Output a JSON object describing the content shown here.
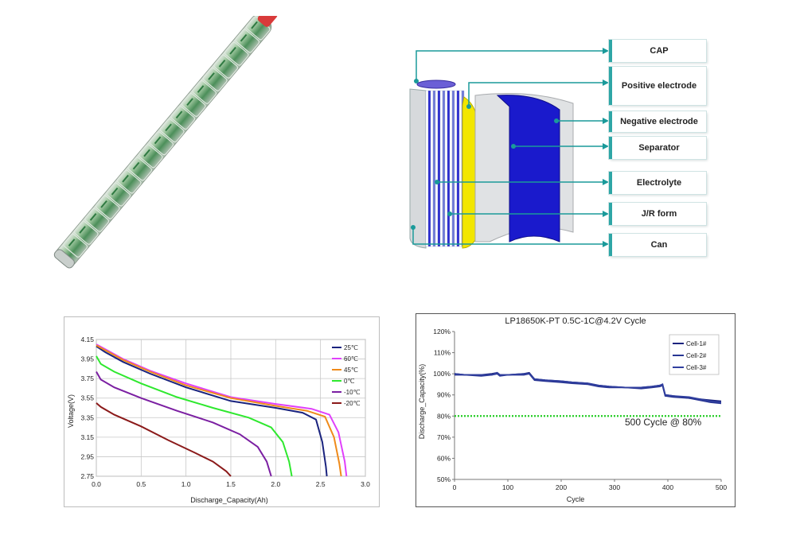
{
  "diagram": {
    "labels": [
      "CAP",
      "Positive electrode",
      "Negative electrode",
      "Separator",
      "Electrolyte",
      "J/R form",
      "Can"
    ]
  },
  "chart_data": [
    {
      "type": "line",
      "title": "",
      "xlabel": "Discharge_Capacity(Ah)",
      "ylabel": "Voltage(V)",
      "xlim": [
        0.0,
        3.0
      ],
      "ylim": [
        2.75,
        4.15
      ],
      "xticks": [
        "0.0",
        "0.5",
        "1.0",
        "1.5",
        "2.0",
        "2.5",
        "3.0"
      ],
      "yticks": [
        "2.75",
        "2.95",
        "3.15",
        "3.35",
        "3.55",
        "3.75",
        "3.95",
        "4.15"
      ],
      "grid": true,
      "legend_position": "top-right",
      "series": [
        {
          "name": "25℃",
          "color": "#1a237e",
          "x": [
            0,
            0.1,
            0.3,
            0.6,
            1.0,
            1.5,
            2.0,
            2.3,
            2.45,
            2.52,
            2.56,
            2.57
          ],
          "y": [
            4.08,
            4.02,
            3.92,
            3.8,
            3.66,
            3.52,
            3.45,
            3.4,
            3.33,
            3.1,
            2.85,
            2.75
          ]
        },
        {
          "name": "60℃",
          "color": "#e040fb",
          "x": [
            0,
            0.1,
            0.3,
            0.6,
            1.0,
            1.5,
            2.0,
            2.4,
            2.6,
            2.7,
            2.77,
            2.79
          ],
          "y": [
            4.1,
            4.05,
            3.95,
            3.83,
            3.7,
            3.56,
            3.49,
            3.44,
            3.38,
            3.2,
            2.9,
            2.75
          ]
        },
        {
          "name": "45℃",
          "color": "#ef8a1a",
          "x": [
            0,
            0.1,
            0.3,
            0.6,
            1.0,
            1.5,
            2.0,
            2.35,
            2.55,
            2.65,
            2.71,
            2.73
          ],
          "y": [
            4.09,
            4.04,
            3.94,
            3.82,
            3.68,
            3.55,
            3.47,
            3.42,
            3.36,
            3.15,
            2.88,
            2.75
          ]
        },
        {
          "name": "0℃",
          "color": "#2ee82e",
          "x": [
            0,
            0.05,
            0.2,
            0.5,
            0.9,
            1.3,
            1.7,
            1.95,
            2.08,
            2.15,
            2.18
          ],
          "y": [
            3.98,
            3.9,
            3.82,
            3.7,
            3.56,
            3.45,
            3.35,
            3.25,
            3.1,
            2.9,
            2.75
          ]
        },
        {
          "name": "-10℃",
          "color": "#7b1fa2",
          "x": [
            0,
            0.05,
            0.2,
            0.5,
            0.9,
            1.3,
            1.6,
            1.8,
            1.9,
            1.95
          ],
          "y": [
            3.82,
            3.74,
            3.66,
            3.55,
            3.42,
            3.3,
            3.18,
            3.05,
            2.9,
            2.75
          ]
        },
        {
          "name": "-20℃",
          "color": "#8b1a1a",
          "x": [
            0,
            0.05,
            0.2,
            0.5,
            0.8,
            1.1,
            1.3,
            1.45,
            1.5
          ],
          "y": [
            3.5,
            3.46,
            3.38,
            3.26,
            3.12,
            2.99,
            2.9,
            2.8,
            2.75
          ]
        }
      ]
    },
    {
      "type": "line",
      "title": "LP18650K-PT 0.5C-1C@4.2V Cycle",
      "xlabel": "Cycle",
      "ylabel": "Discharge_Capacity(%)",
      "xlim": [
        0,
        500
      ],
      "ylim": [
        50,
        120
      ],
      "xticks": [
        "0",
        "100",
        "200",
        "300",
        "400",
        "500"
      ],
      "yticks": [
        "50%",
        "60%",
        "70%",
        "80%",
        "90%",
        "100%",
        "110%",
        "120%"
      ],
      "grid": false,
      "legend_position": "top-right",
      "annotation": "500 Cycle @ 80%",
      "reference_line": {
        "y": 80,
        "color": "#22cc22",
        "style": "dotted"
      },
      "series": [
        {
          "name": "Cell-1#",
          "color": "#1a237e",
          "x": [
            0,
            20,
            50,
            70,
            80,
            85,
            100,
            130,
            140,
            150,
            170,
            200,
            220,
            250,
            270,
            290,
            320,
            350,
            370,
            385,
            390,
            395,
            410,
            440,
            460,
            480,
            500
          ],
          "y": [
            100,
            99.5,
            99.5,
            100,
            100.5,
            99.5,
            99.5,
            100,
            100.5,
            97.5,
            97,
            96.5,
            96,
            95.5,
            94.5,
            94,
            93.5,
            93.5,
            94,
            94.5,
            95,
            90,
            89.5,
            88.5,
            88,
            87.5,
            87
          ]
        },
        {
          "name": "Cell-2#",
          "color": "#283593",
          "x": [
            0,
            20,
            50,
            70,
            80,
            85,
            100,
            130,
            140,
            150,
            170,
            200,
            220,
            250,
            270,
            290,
            320,
            350,
            370,
            385,
            390,
            395,
            410,
            440,
            460,
            480,
            500
          ],
          "y": [
            99.5,
            99.5,
            99,
            99.5,
            100,
            99,
            99.5,
            99.5,
            100,
            97,
            96.5,
            96,
            95.5,
            95,
            94,
            93.5,
            93.5,
            93,
            93.5,
            94,
            94.5,
            89.5,
            89,
            88.5,
            87.5,
            86.5,
            86
          ]
        },
        {
          "name": "Cell-3#",
          "color": "#303f9f",
          "x": [
            0,
            20,
            50,
            70,
            80,
            85,
            100,
            130,
            140,
            150,
            170,
            200,
            220,
            250,
            270,
            290,
            320,
            350,
            370,
            385,
            390,
            395,
            410,
            440,
            460,
            480,
            500
          ],
          "y": [
            100,
            99.5,
            99.5,
            99.5,
            100.5,
            99.5,
            99.5,
            100,
            100,
            97.5,
            97,
            96.5,
            96,
            95.5,
            94.5,
            94,
            93.5,
            93.5,
            94,
            94.5,
            95,
            90,
            89.5,
            89,
            88,
            87,
            86.5
          ]
        }
      ]
    }
  ]
}
